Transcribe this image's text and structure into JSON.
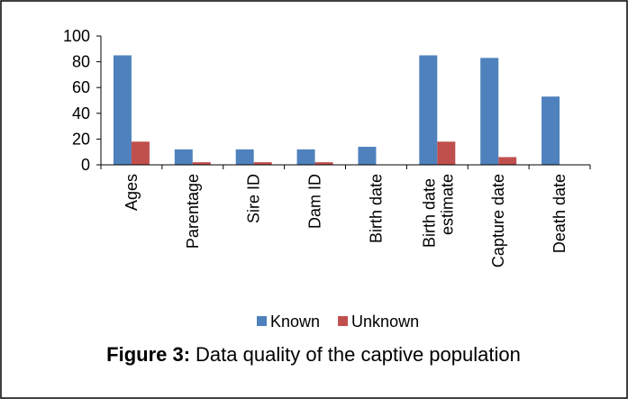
{
  "chart_data": {
    "type": "bar",
    "categories": [
      "Ages",
      "Parentage",
      "Sire ID",
      "Dam ID",
      "Birth date",
      "Birth date estimate",
      "Capture date",
      "Death date"
    ],
    "series": [
      {
        "name": "Known",
        "color": "#4f81bd",
        "values": [
          85,
          12,
          12,
          12,
          14,
          85,
          83,
          53
        ]
      },
      {
        "name": "Unknown",
        "color": "#c0504d",
        "values": [
          18,
          2,
          2,
          2,
          0,
          18,
          6,
          0
        ]
      }
    ],
    "ylim": [
      0,
      100
    ],
    "yticks": [
      0,
      20,
      40,
      60,
      80,
      100
    ],
    "grid": false,
    "legend": "bottom",
    "caption_label": "Figure 3:",
    "caption": "Data quality of the captive population"
  }
}
